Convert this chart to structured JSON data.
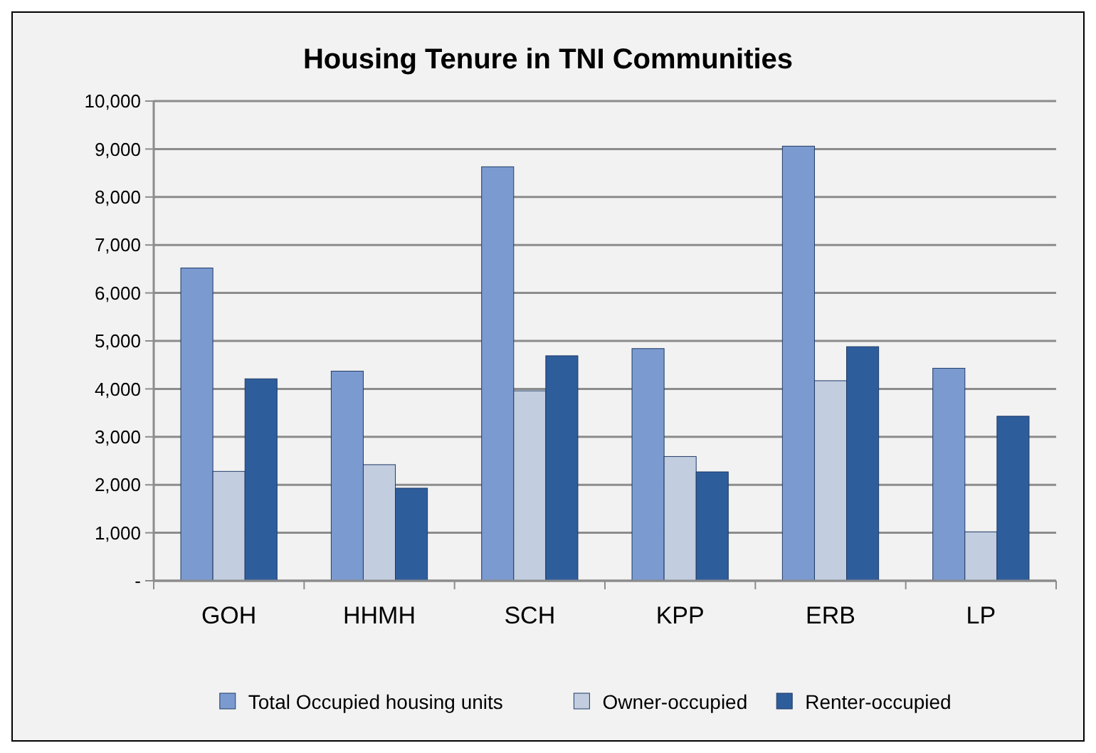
{
  "chart_data": {
    "type": "bar",
    "title": "Housing Tenure in TNI Communities",
    "categories": [
      "GOH",
      "HHMH",
      "SCH",
      "KPP",
      "ERB",
      "LP"
    ],
    "series": [
      {
        "name": "Total Occupied housing units",
        "color": "#7b9bd0",
        "values": [
          6520,
          4370,
          8630,
          4840,
          9060,
          4430
        ]
      },
      {
        "name": "Owner-occupied",
        "color": "#c3cde0",
        "values": [
          2280,
          2420,
          3960,
          2590,
          4170,
          1020
        ]
      },
      {
        "name": "Renter-occupied",
        "color": "#2e5d9c",
        "values": [
          4210,
          1930,
          4690,
          2270,
          4880,
          3430
        ]
      }
    ],
    "ylim": [
      0,
      10000
    ],
    "yticks": [
      {
        "value": 0,
        "label": "-"
      },
      {
        "value": 1000,
        "label": "1,000"
      },
      {
        "value": 2000,
        "label": "2,000"
      },
      {
        "value": 3000,
        "label": "3,000"
      },
      {
        "value": 4000,
        "label": "4,000"
      },
      {
        "value": 5000,
        "label": "5,000"
      },
      {
        "value": 6000,
        "label": "6,000"
      },
      {
        "value": 7000,
        "label": "7,000"
      },
      {
        "value": 8000,
        "label": "8,000"
      },
      {
        "value": 9000,
        "label": "9,000"
      },
      {
        "value": 10000,
        "label": "10,000"
      }
    ],
    "grid": "y",
    "legend": "bottom"
  }
}
